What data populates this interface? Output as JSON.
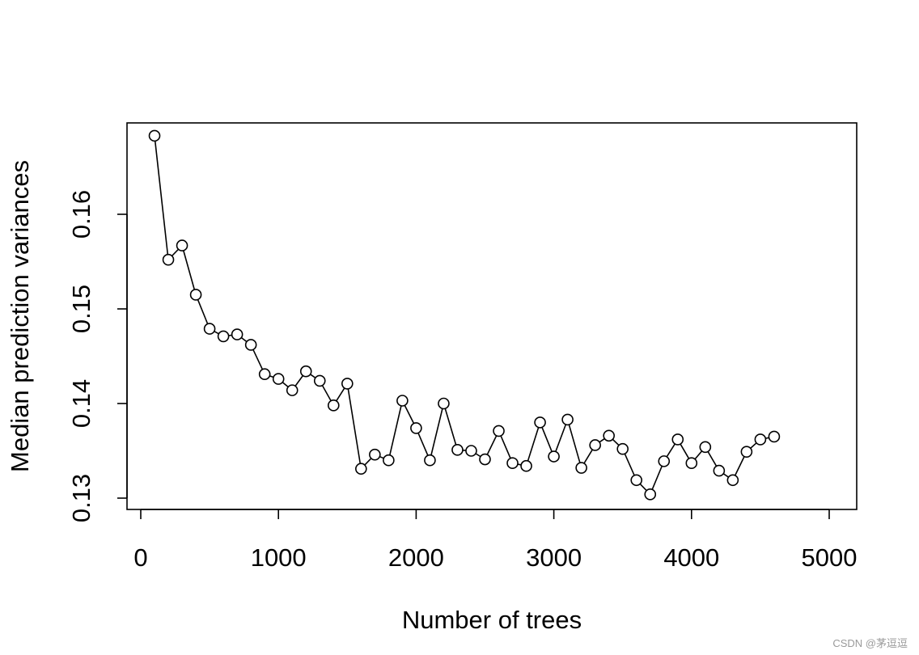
{
  "chart_data": {
    "type": "line",
    "xlabel": "Number of trees",
    "ylabel": "Median prediction variances",
    "xlim": [
      0,
      5000
    ],
    "ylim": [
      0.13,
      0.17
    ],
    "xticks": [
      "0",
      "1000",
      "2000",
      "3000",
      "4000",
      "5000"
    ],
    "yticks": [
      "0.13",
      "0.14",
      "0.15",
      "0.16"
    ],
    "grid": false,
    "markers": "open-circle",
    "line_color": "#000000",
    "series": [
      {
        "x": [
          100,
          200,
          300,
          400,
          500,
          600,
          700,
          800,
          900,
          1000,
          1100,
          1200,
          1300,
          1400,
          1500,
          1600,
          1700,
          1800,
          1900,
          2000,
          2100,
          2200,
          2300,
          2400,
          2500,
          2600,
          2700,
          2800,
          2900,
          3000,
          3100,
          3200,
          3300,
          3400,
          3500,
          3600,
          3700,
          3800,
          3900,
          4000,
          4100,
          4200,
          4300,
          4400,
          4500,
          4600
        ],
        "y": [
          0.1683,
          0.1552,
          0.1567,
          0.1515,
          0.1479,
          0.1471,
          0.1473,
          0.1462,
          0.1431,
          0.1426,
          0.1414,
          0.1434,
          0.1424,
          0.1398,
          0.1421,
          0.1331,
          0.1346,
          0.134,
          0.1403,
          0.1374,
          0.134,
          0.14,
          0.1351,
          0.135,
          0.1341,
          0.1371,
          0.1337,
          0.1334,
          0.138,
          0.1344,
          0.1383,
          0.1332,
          0.1356,
          0.1366,
          0.1352,
          0.1319,
          0.1304,
          0.1339,
          0.1362,
          0.1337,
          0.1354,
          0.1329,
          0.1319,
          0.1349,
          0.1362,
          0.1365
        ]
      }
    ]
  },
  "watermark": "CSDN @茅逗逗"
}
